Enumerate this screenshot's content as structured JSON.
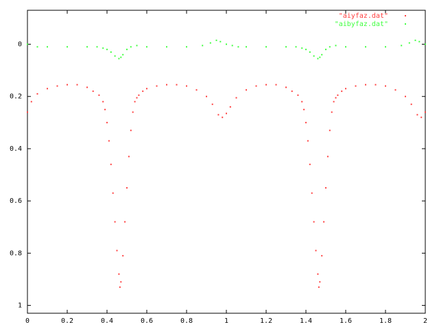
{
  "chart_data": {
    "type": "scatter",
    "title": "",
    "xlabel": "",
    "ylabel": "",
    "xlim": [
      0,
      2
    ],
    "ylim": [
      1.03,
      -0.13
    ],
    "y_axis_inverted": true,
    "grid": false,
    "legend_placement": "top-right",
    "x_ticks": [
      0,
      0.2,
      0.4,
      0.6,
      0.8,
      1,
      1.2,
      1.4,
      1.6,
      1.8,
      2
    ],
    "x_tick_labels": [
      "0",
      "0.2",
      "0.4",
      "0.6",
      "0.8",
      "1",
      "1.2",
      "1.4",
      "1.6",
      "1.8",
      "2"
    ],
    "y_ticks": [
      0,
      0.2,
      0.4,
      0.6,
      0.8,
      1
    ],
    "y_tick_labels": [
      "0",
      "0.2",
      "0.4",
      "0.6",
      "0.8",
      "1"
    ],
    "series": [
      {
        "name": "\"aiyfaz.dat\"",
        "color": "#ff4040",
        "marker": "dot",
        "x": [
          0.0,
          0.02,
          0.05,
          0.1,
          0.15,
          0.2,
          0.25,
          0.3,
          0.33,
          0.36,
          0.38,
          0.39,
          0.4,
          0.41,
          0.42,
          0.43,
          0.44,
          0.45,
          0.46,
          0.465,
          0.47,
          0.48,
          0.49,
          0.5,
          0.51,
          0.52,
          0.53,
          0.54,
          0.55,
          0.56,
          0.58,
          0.6,
          0.65,
          0.7,
          0.75,
          0.8,
          0.85,
          0.9,
          0.93,
          0.96,
          0.98,
          1.0,
          1.02,
          1.05,
          1.1,
          1.15,
          1.2,
          1.25,
          1.3,
          1.33,
          1.36,
          1.38,
          1.39,
          1.4,
          1.41,
          1.42,
          1.43,
          1.44,
          1.45,
          1.46,
          1.465,
          1.47,
          1.48,
          1.49,
          1.5,
          1.51,
          1.52,
          1.53,
          1.54,
          1.55,
          1.56,
          1.58,
          1.6,
          1.65,
          1.7,
          1.75,
          1.8,
          1.85,
          1.9,
          1.93,
          1.96,
          1.98,
          2.0
        ],
        "y": [
          0.26,
          0.22,
          0.19,
          0.17,
          0.16,
          0.155,
          0.155,
          0.165,
          0.18,
          0.195,
          0.22,
          0.25,
          0.3,
          0.37,
          0.46,
          0.57,
          0.68,
          0.79,
          0.88,
          0.93,
          0.91,
          0.81,
          0.68,
          0.55,
          0.43,
          0.33,
          0.26,
          0.22,
          0.205,
          0.195,
          0.18,
          0.17,
          0.16,
          0.155,
          0.155,
          0.16,
          0.175,
          0.2,
          0.23,
          0.27,
          0.28,
          0.265,
          0.24,
          0.205,
          0.175,
          0.16,
          0.155,
          0.155,
          0.165,
          0.18,
          0.195,
          0.22,
          0.25,
          0.3,
          0.37,
          0.46,
          0.57,
          0.68,
          0.79,
          0.88,
          0.93,
          0.91,
          0.81,
          0.68,
          0.55,
          0.43,
          0.33,
          0.26,
          0.22,
          0.205,
          0.195,
          0.18,
          0.17,
          0.16,
          0.155,
          0.155,
          0.16,
          0.175,
          0.2,
          0.23,
          0.27,
          0.28,
          0.26
        ]
      },
      {
        "name": "\"aibyfaz.dat\"",
        "color": "#40ff40",
        "marker": "dot",
        "x": [
          0.0,
          0.05,
          0.1,
          0.2,
          0.3,
          0.35,
          0.38,
          0.4,
          0.42,
          0.44,
          0.46,
          0.47,
          0.48,
          0.5,
          0.52,
          0.55,
          0.6,
          0.7,
          0.8,
          0.88,
          0.92,
          0.95,
          0.97,
          1.0,
          1.03,
          1.06,
          1.1,
          1.2,
          1.3,
          1.35,
          1.38,
          1.4,
          1.42,
          1.44,
          1.46,
          1.47,
          1.48,
          1.5,
          1.52,
          1.55,
          1.6,
          1.7,
          1.8,
          1.88,
          1.92,
          1.95,
          1.97,
          2.0
        ],
        "y": [
          0.0,
          0.01,
          0.01,
          0.01,
          0.01,
          0.01,
          0.015,
          0.02,
          0.03,
          0.045,
          0.055,
          0.05,
          0.04,
          0.02,
          0.01,
          0.005,
          0.01,
          0.01,
          0.01,
          0.005,
          -0.005,
          -0.015,
          -0.01,
          0.0,
          0.005,
          0.01,
          0.01,
          0.01,
          0.01,
          0.01,
          0.015,
          0.02,
          0.03,
          0.045,
          0.055,
          0.05,
          0.04,
          0.02,
          0.01,
          0.005,
          0.01,
          0.01,
          0.01,
          0.005,
          -0.005,
          -0.015,
          -0.01,
          0.0
        ]
      }
    ]
  }
}
